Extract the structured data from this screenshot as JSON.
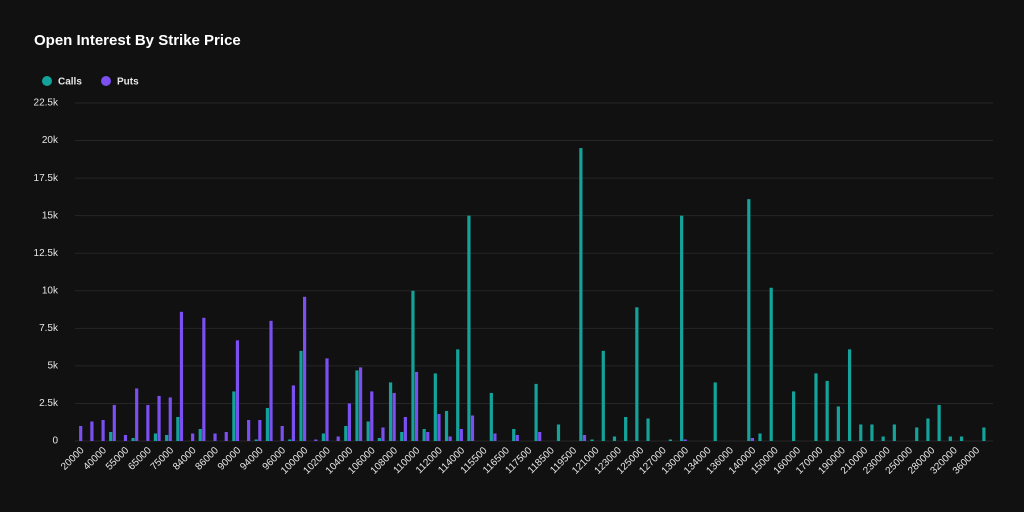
{
  "chart_data": {
    "type": "bar",
    "title": "Open Interest By Strike Price",
    "categories": [
      "20000",
      null,
      "40000",
      null,
      "55000",
      null,
      "65000",
      null,
      "75000",
      null,
      "84000",
      null,
      "86000",
      null,
      "90000",
      null,
      "94000",
      null,
      "96000",
      null,
      "100000",
      null,
      "102000",
      null,
      "104000",
      null,
      "106000",
      null,
      "108000",
      null,
      "110000",
      null,
      "112000",
      null,
      "114000",
      null,
      "115500",
      null,
      "116500",
      null,
      "117500",
      null,
      "118500",
      null,
      "119500",
      null,
      "121000",
      null,
      "123000",
      null,
      "125000",
      null,
      "127000",
      null,
      "130000",
      null,
      "134000",
      null,
      "136000",
      null,
      "140000",
      null,
      "150000",
      null,
      "160000",
      null,
      "170000",
      null,
      "190000",
      null,
      "210000",
      null,
      "230000",
      null,
      "250000",
      null,
      "280000",
      null,
      "320000",
      null,
      "360000",
      null
    ],
    "series": [
      {
        "name": "Calls",
        "color": "#14a39a",
        "values": [
          0,
          0,
          0,
          600,
          0,
          200,
          0,
          500,
          400,
          1600,
          0,
          800,
          0,
          0,
          3300,
          0,
          100,
          2200,
          0,
          100,
          6000,
          0,
          500,
          0,
          1000,
          4700,
          1300,
          200,
          3900,
          600,
          10000,
          800,
          4500,
          2000,
          6100,
          15000,
          0,
          3200,
          0,
          800,
          0,
          3800,
          0,
          1100,
          0,
          19500,
          100,
          6000,
          300,
          1600,
          8900,
          1500,
          0,
          100,
          15000,
          0,
          0,
          3900,
          0,
          0,
          16100,
          500,
          10200,
          0,
          3300,
          0,
          4500,
          4000,
          2300,
          6100,
          1100,
          1100,
          300,
          1100,
          0,
          900,
          1500,
          2400,
          300,
          300,
          0,
          900
        ]
      },
      {
        "name": "Puts",
        "color": "#7b4ff0",
        "values": [
          1000,
          1300,
          1400,
          2400,
          400,
          3500,
          2400,
          3000,
          2900,
          8600,
          500,
          8200,
          500,
          600,
          6700,
          1400,
          1400,
          8000,
          1000,
          3700,
          9600,
          100,
          5500,
          300,
          2500,
          4900,
          3300,
          900,
          3200,
          1600,
          4600,
          600,
          1800,
          300,
          800,
          1700,
          0,
          500,
          0,
          400,
          0,
          600,
          0,
          0,
          0,
          400,
          0,
          0,
          0,
          0,
          0,
          0,
          0,
          0,
          100,
          0,
          0,
          0,
          0,
          0,
          200,
          0,
          0,
          0,
          0,
          0,
          0,
          0,
          0,
          0,
          0,
          0,
          0,
          0,
          0,
          0,
          0,
          0,
          0,
          0,
          0,
          0
        ]
      }
    ],
    "ylim": [
      0,
      22500
    ],
    "yticks": [
      0,
      {
        "value": 2500,
        "label": "2.5k"
      },
      {
        "value": 5000,
        "label": "5k"
      },
      {
        "value": 7500,
        "label": "7.5k"
      },
      {
        "value": 10000,
        "label": "10k"
      },
      {
        "value": 12500,
        "label": "12.5k"
      },
      {
        "value": 15000,
        "label": "15k"
      },
      {
        "value": 17500,
        "label": "17.5k"
      },
      {
        "value": 20000,
        "label": "20k"
      },
      {
        "value": 22500,
        "label": "22.5k"
      }
    ],
    "grid": true,
    "legend": "top-left"
  }
}
